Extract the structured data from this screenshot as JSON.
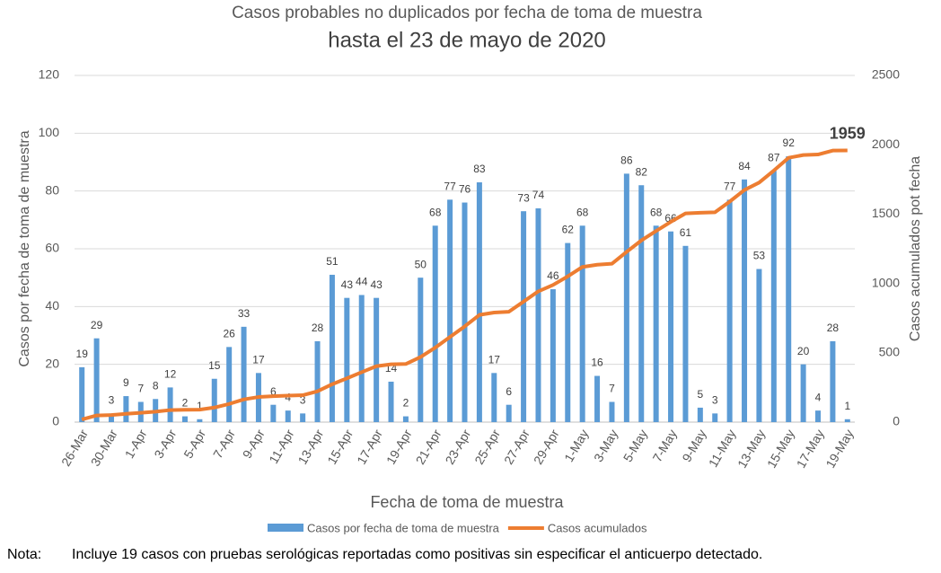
{
  "chart_data": {
    "type": "bar-line",
    "title": "Casos probables no duplicados por fecha de toma de muestra",
    "subtitle": "hasta el 23 de mayo de 2020",
    "x_label": "Fecha de toma de muestra",
    "y_label": "Casos por fecha de toma de muestra",
    "y2_label": "Casos acumulados pot fecha",
    "categories": [
      "26-Mar",
      null,
      "30-Mar",
      null,
      "1-Apr",
      null,
      "3-Apr",
      null,
      "5-Apr",
      null,
      "7-Apr",
      null,
      "9-Apr",
      null,
      "11-Apr",
      null,
      "13-Apr",
      null,
      "15-Apr",
      null,
      "17-Apr",
      null,
      "19-Apr",
      null,
      "21-Apr",
      null,
      "23-Apr",
      null,
      "25-Apr",
      null,
      "27-Apr",
      null,
      "29-Apr",
      null,
      "1-May",
      null,
      "3-May",
      null,
      "5-May",
      null,
      "7-May",
      null,
      "9-May",
      null,
      "11-May",
      null,
      "13-May",
      null,
      "15-May",
      null,
      "17-May",
      null,
      "19-May"
    ],
    "series": [
      {
        "name": "Casos por fecha de toma de muestra",
        "kind": "bar",
        "color": "#5b9bd5",
        "values": [
          19,
          29,
          3,
          9,
          7,
          8,
          12,
          2,
          1,
          15,
          26,
          33,
          17,
          6,
          4,
          3,
          28,
          51,
          43,
          44,
          43,
          14,
          2,
          50,
          68,
          77,
          76,
          83,
          17,
          6,
          73,
          74,
          46,
          62,
          68,
          16,
          7,
          86,
          82,
          68,
          66,
          61,
          5,
          3,
          77,
          84,
          53,
          87,
          92,
          20,
          4,
          28,
          1
        ]
      },
      {
        "name": "Casos acumulados",
        "kind": "line",
        "axis": "y2",
        "color": "#ed7d31",
        "values": [
          19,
          48,
          51,
          60,
          67,
          75,
          87,
          89,
          90,
          105,
          131,
          164,
          181,
          187,
          191,
          194,
          222,
          273,
          316,
          360,
          403,
          417,
          419,
          469,
          537,
          614,
          690,
          773,
          790,
          796,
          869,
          943,
          989,
          1051,
          1119,
          1135,
          1142,
          1228,
          1310,
          1378,
          1444,
          1505,
          1510,
          1513,
          1590,
          1674,
          1727,
          1814,
          1906,
          1926,
          1930,
          1958,
          1959
        ],
        "value_labels": [
          null,
          null,
          null,
          null,
          null,
          null,
          null,
          null,
          null,
          null,
          null,
          null,
          null,
          null,
          null,
          null,
          null,
          null,
          null,
          null,
          null,
          null,
          null,
          null,
          null,
          null,
          null,
          null,
          null,
          null,
          null,
          null,
          null,
          null,
          null,
          null,
          null,
          null,
          null,
          null,
          null,
          null,
          null,
          null,
          null,
          null,
          null,
          null,
          null,
          null,
          null,
          null,
          "1959"
        ]
      }
    ],
    "ylim": [
      0,
      120
    ],
    "yticks": [
      0,
      20,
      40,
      60,
      80,
      100,
      120
    ],
    "y2lim": [
      0,
      2500
    ],
    "y2ticks": [
      0,
      500,
      1000,
      1500,
      2000,
      2500
    ],
    "grid": true,
    "legend": "bottom"
  },
  "note": {
    "label": "Nota:",
    "text": "Incluye 19 casos con pruebas serológicas reportadas como positivas sin especificar el anticuerpo detectado."
  }
}
